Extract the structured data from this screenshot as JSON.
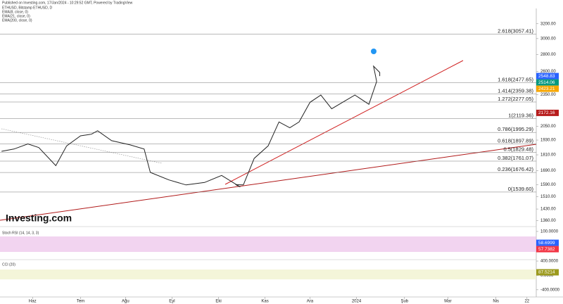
{
  "header": {
    "published": "Published on Investing.com, 17/Jan/2024 - 10:29:52 GMT, Powered by TradingView",
    "symbol": "ETHUSD, Bitstamp ETHUSD, D",
    "indicators": [
      "EMA(8, close, 0)",
      "EMA(21, close, 0)",
      "EMA(200, close, 0)"
    ],
    "logo": "Investing.com"
  },
  "chart_data": {
    "type": "line",
    "log_scale": true,
    "color": "#222222",
    "x": [
      -20,
      -12,
      -3,
      4,
      15,
      22,
      31,
      38,
      42,
      51,
      63,
      72,
      76,
      88,
      99,
      111,
      122,
      134,
      131,
      136,
      143,
      152,
      159,
      166,
      172,
      179,
      186,
      193,
      200,
      208,
      217,
      222,
      220,
      224,
      224
    ],
    "values": [
      1838,
      1856,
      1898,
      1868,
      1727,
      1882,
      1966,
      1980,
      2010,
      1925,
      1890,
      1856,
      1677,
      1623,
      1588,
      1605,
      1655,
      1574,
      1590,
      1588,
      1782,
      1882,
      2088,
      2036,
      2088,
      2274,
      2347,
      2211,
      2274,
      2347,
      2255,
      2490,
      2661,
      2589,
      2549
    ],
    "xlim": [
      -21,
      325
    ],
    "ylim": [
      1325,
      3420
    ],
    "xticks": [
      {
        "value": 0,
        "label": "Haz"
      },
      {
        "value": 31,
        "label": "Tem"
      },
      {
        "value": 60,
        "label": "Ağu"
      },
      {
        "value": 90,
        "label": "Eyl"
      },
      {
        "value": 120,
        "label": "Eki"
      },
      {
        "value": 150,
        "label": "Kas"
      },
      {
        "value": 179,
        "label": "Ara"
      },
      {
        "value": 209,
        "label": "2024"
      },
      {
        "value": 240,
        "label": "Şub"
      },
      {
        "value": 268,
        "label": "Mar"
      },
      {
        "value": 299,
        "label": "Nis"
      },
      {
        "value": 319,
        "label": "22"
      }
    ],
    "yticks": [
      {
        "value": 3200,
        "label": "3200.00"
      },
      {
        "value": 3000,
        "label": "3000.00"
      },
      {
        "value": 2800,
        "label": "2800.00"
      },
      {
        "value": 2600,
        "label": "2600.00"
      },
      {
        "value": 2350,
        "label": "2350.00"
      },
      {
        "value": 2050,
        "label": "2050.00"
      },
      {
        "value": 1930,
        "label": "1930.00"
      },
      {
        "value": 1810,
        "label": "1810.00"
      },
      {
        "value": 1690,
        "label": "1690.00"
      },
      {
        "value": 1590,
        "label": "1590.00"
      },
      {
        "value": 1510,
        "label": "1510.00"
      },
      {
        "value": 1430,
        "label": "1430.00"
      },
      {
        "value": 1360,
        "label": "1360.00"
      }
    ],
    "fib_levels": [
      {
        "value": 3057.41,
        "label": "2.618(3057.41)"
      },
      {
        "value": 2477.65,
        "label": "1.618(2477.65)"
      },
      {
        "value": 2359.38,
        "label": "1.414(2359.38)"
      },
      {
        "value": 2277.05,
        "label": "1.272(2277.05)"
      },
      {
        "value": 2119.36,
        "label": "1(2119.36)"
      },
      {
        "value": 1995.29,
        "label": "0.786(1995.29)"
      },
      {
        "value": 1897.89,
        "label": "0.618(1897.89)"
      },
      {
        "value": 1829.48,
        "label": "0.5(1829.48)"
      },
      {
        "value": 1761.07,
        "label": "0.382(1761.07)"
      },
      {
        "value": 1676.42,
        "label": "0.236(1676.42)"
      },
      {
        "value": 1539.6,
        "label": "0(1539.60)"
      }
    ],
    "price_badges": [
      {
        "value": 2548.83,
        "label": "2548.83",
        "color": "#2962ff"
      },
      {
        "value": 2514.06,
        "label": "2514.06",
        "color": "#089981"
      },
      {
        "value": 2423.21,
        "label": "2423.21",
        "color": "#f7a600"
      },
      {
        "value": 2172.16,
        "label": "2172.16",
        "color": "#b71c1c"
      }
    ]
  },
  "stoch_rsi": {
    "title": "Stoch RSI (14, 14, 3, 3)",
    "ylim": [
      0,
      110
    ],
    "yticks": [
      {
        "value": 100,
        "label": "100.0000"
      }
    ],
    "badges": [
      {
        "value": 58.6999,
        "label": "58.6999",
        "color": "#2962ff"
      },
      {
        "value": 57.7382,
        "label": "57.7382",
        "color": "#f23645"
      }
    ]
  },
  "cci": {
    "title": "CCI (20)",
    "ylim": [
      -600,
      420
    ],
    "yticks": [
      {
        "value": 400,
        "label": "400.0000"
      },
      {
        "value": 0,
        "label": "0.0000"
      },
      {
        "value": -400,
        "label": "-400.0000"
      }
    ],
    "badges": [
      {
        "value": 87.5214,
        "label": "87.5214",
        "color": "#9c9a1e"
      }
    ]
  }
}
